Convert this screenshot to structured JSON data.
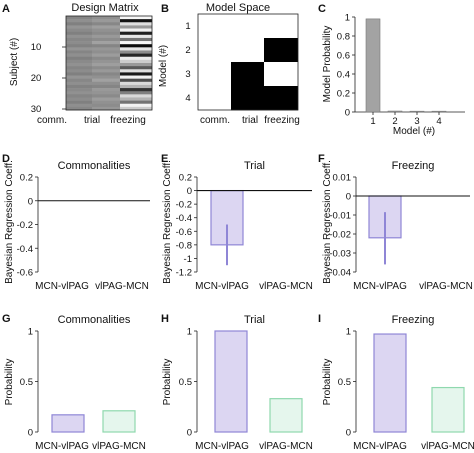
{
  "colors": {
    "purple_fill": "#dcd6f2",
    "purple_edge": "#8f86d6",
    "green_fill": "#e5f6ed",
    "green_edge": "#8fd8ae",
    "grey_bar": "#a3a3a3"
  },
  "panels": {
    "A": {
      "label": "A",
      "title": "Design Matrix",
      "ylabel": "Subject (#)",
      "yticks": [
        "10",
        "20",
        "30"
      ],
      "columns": [
        "comm.",
        "trial",
        "freezing"
      ]
    },
    "B": {
      "label": "B",
      "title": "Model Space",
      "ylabel": "Model (#)",
      "yticks": [
        "1",
        "2",
        "3",
        "4"
      ],
      "columns": [
        "comm.",
        "trial",
        "freezing"
      ]
    },
    "C": {
      "label": "C"
    },
    "D": {
      "label": "D"
    },
    "E": {
      "label": "E"
    },
    "F": {
      "label": "F"
    },
    "G": {
      "label": "G"
    },
    "H": {
      "label": "H"
    },
    "I": {
      "label": "I"
    }
  },
  "chart_data": [
    {
      "panel": "A",
      "type": "heatmap",
      "title": "Design Matrix",
      "ylabel": "Subject (#)",
      "columns": [
        "comm.",
        "trial",
        "freezing"
      ],
      "yticks": [
        10,
        20,
        30
      ],
      "rows": 30,
      "comm_values": [
        0.52,
        0.56,
        0.5,
        0.58,
        0.54,
        0.5,
        0.57,
        0.53,
        0.55,
        0.51,
        0.58,
        0.52,
        0.56,
        0.5,
        0.54,
        0.57,
        0.52,
        0.55,
        0.5,
        0.58,
        0.53,
        0.56,
        0.51,
        0.54,
        0.57,
        0.52,
        0.55,
        0.5,
        0.56,
        0.53
      ],
      "trial_values": [
        0.56,
        0.6,
        0.53,
        0.62,
        0.57,
        0.54,
        0.6,
        0.55,
        0.63,
        0.52,
        0.59,
        0.56,
        0.61,
        0.54,
        0.58,
        0.62,
        0.55,
        0.6,
        0.53,
        0.57,
        0.63,
        0.56,
        0.52,
        0.6,
        0.58,
        0.54,
        0.61,
        0.57,
        0.55,
        0.59
      ],
      "freezing_values": [
        0.97,
        0.08,
        0.88,
        0.6,
        0.95,
        0.12,
        0.9,
        0.45,
        0.97,
        0.05,
        0.9,
        0.55,
        0.15,
        0.92,
        0.8,
        0.6,
        0.35,
        0.88,
        0.1,
        0.95,
        0.3,
        0.85,
        0.7,
        0.2,
        0.5,
        0.85,
        0.7,
        0.45,
        0.95,
        0.8
      ]
    },
    {
      "panel": "B",
      "type": "heatmap",
      "title": "Model Space",
      "ylabel": "Model (#)",
      "columns": [
        "comm.",
        "trial",
        "freezing"
      ],
      "rows": [
        "1",
        "2",
        "3",
        "4"
      ],
      "values": [
        [
          0,
          0,
          0
        ],
        [
          0,
          0,
          1
        ],
        [
          0,
          1,
          0
        ],
        [
          0,
          1,
          1
        ]
      ]
    },
    {
      "panel": "C",
      "type": "bar",
      "ylabel": "Model Probability",
      "xlabel": "Model (#)",
      "categories": [
        "1",
        "2",
        "3",
        "4"
      ],
      "values": [
        0.98,
        0.01,
        0.005,
        0.005
      ],
      "ylim": [
        0,
        1
      ],
      "yticks": [
        "0",
        "0.2",
        "0.4",
        "0.6",
        "0.8",
        "1"
      ]
    },
    {
      "panel": "D",
      "type": "bar",
      "title": "Commonalities",
      "ylabel": "Bayesian Regression Coeff.",
      "categories": [
        "MCN-vlPAG",
        "vlPAG-MCN"
      ],
      "values": [
        0,
        0
      ],
      "ylim": [
        -0.6,
        0.2
      ],
      "yticks": [
        "0.2",
        "0",
        "-0.2",
        "-0.4",
        "-0.6"
      ]
    },
    {
      "panel": "E",
      "type": "bar",
      "title": "Trial",
      "ylabel": "Bayesian Regression Coeff.",
      "categories": [
        "MCN-vlPAG",
        "vlPAG-MCN"
      ],
      "values": [
        -0.8,
        0
      ],
      "err_low": [
        -1.1,
        null
      ],
      "err_high": [
        -0.5,
        null
      ],
      "ylim": [
        -1.2,
        0.2
      ],
      "yticks": [
        "0.2",
        "0",
        "-0.2",
        "-0.4",
        "-0.6",
        "-0.8",
        "-1",
        "-1.2"
      ]
    },
    {
      "panel": "F",
      "type": "bar",
      "title": "Freezing",
      "ylabel": "Bayesian Regression Coeff.",
      "categories": [
        "MCN-vlPAG",
        "vlPAG-MCN"
      ],
      "values": [
        -0.022,
        0
      ],
      "err_low": [
        -0.036,
        null
      ],
      "err_high": [
        -0.0085,
        null
      ],
      "ylim": [
        -0.04,
        0.01
      ],
      "yticks": [
        "0.01",
        "0",
        "-0.01",
        "-0.02",
        "-0.03",
        "-0.04"
      ]
    },
    {
      "panel": "G",
      "type": "bar",
      "title": "Commonalities",
      "ylabel": "Probability",
      "categories": [
        "MCN-vlPAG",
        "vlPAG-MCN"
      ],
      "values": [
        0.17,
        0.21
      ],
      "ylim": [
        0,
        1
      ],
      "yticks": [
        "0",
        "0.5",
        "1"
      ]
    },
    {
      "panel": "H",
      "type": "bar",
      "title": "Trial",
      "ylabel": "Probability",
      "categories": [
        "MCN-vlPAG",
        "vlPAG-MCN"
      ],
      "values": [
        1.0,
        0.33
      ],
      "ylim": [
        0,
        1
      ],
      "yticks": [
        "0",
        "0.5",
        "1"
      ]
    },
    {
      "panel": "I",
      "type": "bar",
      "title": "Freezing",
      "ylabel": "Probability",
      "categories": [
        "MCN-vlPAG",
        "vlPAG-MCN"
      ],
      "values": [
        0.97,
        0.44
      ],
      "ylim": [
        0,
        1
      ],
      "yticks": [
        "0",
        "0.5",
        "1"
      ]
    }
  ]
}
